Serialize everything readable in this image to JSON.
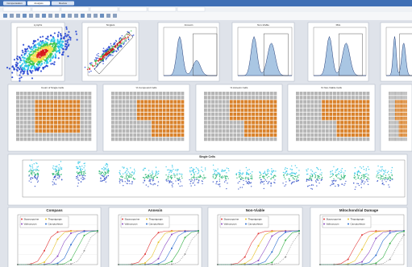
{
  "tabs": [
    "Compensation",
    "Analysis",
    "Review"
  ],
  "panels_top": [
    "Lymphs",
    "Singlets",
    "Annexin",
    "Non-Viable",
    "Mito"
  ],
  "panels_plate": [
    "Count of Single Cells",
    "% Compound Cells",
    "% Annexin Cells",
    "% Non-Viable Cells"
  ],
  "strip_title": "Single Cells",
  "dose_titles": [
    "Compass",
    "Annexin",
    "Non-Viable",
    "Mitochondrial Damage"
  ],
  "legend": [
    "Staurosporine",
    "Thapsigargin",
    "Valinomycin",
    "Camptothecin"
  ]
}
